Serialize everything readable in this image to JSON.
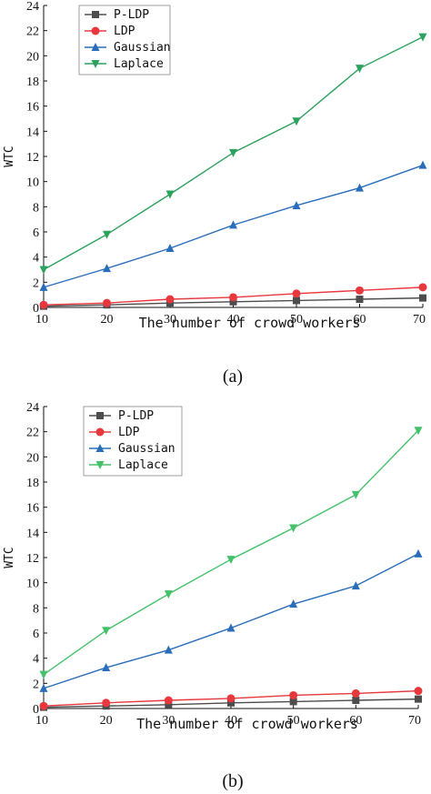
{
  "chart_data": [
    {
      "type": "line",
      "caption": "(a)",
      "xlabel": "The number of crowd workers",
      "ylabel": "WTC",
      "xlim": [
        10,
        70
      ],
      "ylim": [
        0,
        24
      ],
      "x": [
        10,
        20,
        30,
        40,
        50,
        60,
        70
      ],
      "xticks": [
        "10",
        "20",
        "30",
        "40",
        "50",
        "60",
        "70"
      ],
      "yticks": [
        "0",
        "2",
        "4",
        "6",
        "8",
        "10",
        "12",
        "14",
        "16",
        "18",
        "20",
        "22",
        "24"
      ],
      "legend_position": "top-left",
      "series": [
        {
          "name": "P-LDP",
          "color": "#4d4d4d",
          "marker": "square",
          "values": [
            0.1,
            0.2,
            0.35,
            0.45,
            0.55,
            0.65,
            0.75
          ]
        },
        {
          "name": "LDP",
          "color": "#e8383d",
          "marker": "circle",
          "values": [
            0.2,
            0.35,
            0.65,
            0.8,
            1.1,
            1.35,
            1.6
          ]
        },
        {
          "name": "Gaussian",
          "color": "#2a6ebb",
          "marker": "triangle-up",
          "values": [
            1.6,
            3.1,
            4.7,
            6.55,
            8.1,
            9.5,
            11.3
          ]
        },
        {
          "name": "Laplace",
          "color": "#2ca25f",
          "marker": "triangle-down",
          "values": [
            3.0,
            5.8,
            9.0,
            12.3,
            14.8,
            19.0,
            21.5
          ]
        }
      ]
    },
    {
      "type": "line",
      "caption": "(b)",
      "xlabel": "The number of crowd workers",
      "ylabel": "WTC",
      "xlim": [
        10,
        70
      ],
      "ylim": [
        0,
        24
      ],
      "x": [
        10,
        20,
        30,
        40,
        50,
        60,
        70
      ],
      "xticks": [
        "10",
        "20",
        "30",
        "40",
        "50",
        "60",
        "70"
      ],
      "yticks": [
        "0",
        "2",
        "4",
        "6",
        "8",
        "10",
        "12",
        "14",
        "16",
        "18",
        "20",
        "22",
        "24"
      ],
      "legend_position": "top-left",
      "series": [
        {
          "name": "P-LDP",
          "color": "#4d4d4d",
          "marker": "square",
          "values": [
            0.1,
            0.2,
            0.3,
            0.45,
            0.55,
            0.65,
            0.75
          ]
        },
        {
          "name": "LDP",
          "color": "#e8383d",
          "marker": "circle",
          "values": [
            0.2,
            0.45,
            0.65,
            0.8,
            1.05,
            1.2,
            1.4
          ]
        },
        {
          "name": "Gaussian",
          "color": "#2a6ebb",
          "marker": "triangle-up",
          "values": [
            1.6,
            3.25,
            4.65,
            6.4,
            8.3,
            9.75,
            12.3
          ]
        },
        {
          "name": "Laplace",
          "color": "#44c26a",
          "marker": "triangle-down",
          "values": [
            2.7,
            6.2,
            9.1,
            11.85,
            14.35,
            17.0,
            22.1
          ]
        }
      ]
    }
  ]
}
